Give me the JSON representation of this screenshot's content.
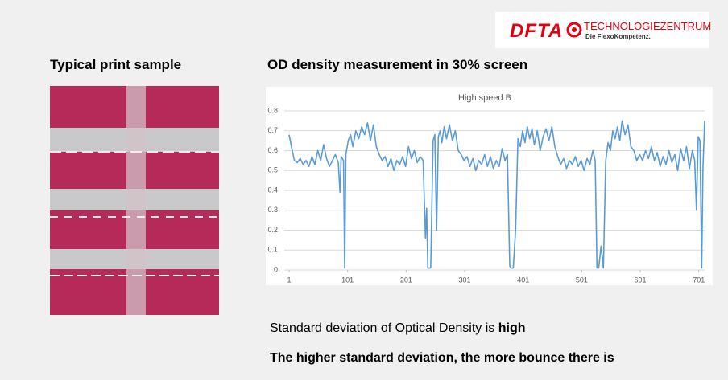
{
  "logo": {
    "brand": "DFTA",
    "name": "TECHNOLOGIEZENTRUM",
    "tagline": "Die FlexoKompetenz."
  },
  "headings": {
    "left": "Typical print sample",
    "right": "OD density measurement in 30% screen"
  },
  "notes": {
    "line1": "Standard deviation of Optical Density is",
    "line1_bold": "high",
    "line2": "The higher standard deviation, the more bounce there is"
  },
  "chart_data": {
    "type": "line",
    "title": "High speed B",
    "x": [
      1,
      5,
      10,
      15,
      20,
      25,
      30,
      35,
      40,
      45,
      50,
      55,
      60,
      65,
      70,
      75,
      80,
      85,
      88,
      90,
      94,
      96,
      98,
      102,
      106,
      110,
      115,
      120,
      125,
      130,
      135,
      140,
      145,
      150,
      155,
      160,
      165,
      170,
      175,
      180,
      185,
      190,
      195,
      200,
      205,
      210,
      215,
      220,
      225,
      230,
      234,
      236,
      238,
      240,
      243,
      247,
      250,
      253,
      256,
      259,
      262,
      266,
      270,
      275,
      280,
      285,
      290,
      295,
      300,
      305,
      310,
      315,
      320,
      325,
      330,
      335,
      340,
      345,
      350,
      355,
      360,
      365,
      370,
      374,
      378,
      380,
      384,
      388,
      392,
      396,
      400,
      404,
      408,
      412,
      416,
      420,
      425,
      430,
      435,
      440,
      445,
      450,
      455,
      460,
      465,
      470,
      475,
      480,
      485,
      490,
      495,
      500,
      505,
      510,
      515,
      520,
      524,
      527,
      530,
      534,
      538,
      542,
      546,
      550,
      554,
      558,
      562,
      566,
      570,
      575,
      580,
      585,
      590,
      595,
      600,
      605,
      610,
      615,
      620,
      625,
      630,
      635,
      640,
      645,
      650,
      655,
      660,
      665,
      670,
      675,
      680,
      685,
      690,
      694,
      697,
      700,
      703,
      706,
      708,
      711
    ],
    "series": [
      {
        "name": "High speed B",
        "color": "#5b9bd5",
        "values": [
          0.68,
          0.62,
          0.55,
          0.54,
          0.56,
          0.53,
          0.55,
          0.52,
          0.57,
          0.53,
          0.6,
          0.55,
          0.63,
          0.56,
          0.52,
          0.55,
          0.58,
          0.54,
          0.39,
          0.57,
          0.55,
          0.01,
          0.58,
          0.65,
          0.68,
          0.62,
          0.7,
          0.66,
          0.72,
          0.68,
          0.74,
          0.65,
          0.73,
          0.62,
          0.58,
          0.55,
          0.57,
          0.52,
          0.56,
          0.5,
          0.55,
          0.53,
          0.57,
          0.52,
          0.62,
          0.56,
          0.6,
          0.54,
          0.57,
          0.55,
          0.16,
          0.31,
          0.01,
          0.01,
          0.01,
          0.65,
          0.68,
          0.2,
          0.67,
          0.7,
          0.64,
          0.72,
          0.66,
          0.73,
          0.65,
          0.7,
          0.6,
          0.58,
          0.55,
          0.57,
          0.52,
          0.56,
          0.5,
          0.55,
          0.53,
          0.58,
          0.52,
          0.57,
          0.51,
          0.55,
          0.52,
          0.61,
          0.55,
          0.58,
          0.02,
          0.01,
          0.01,
          0.2,
          0.66,
          0.62,
          0.7,
          0.64,
          0.72,
          0.66,
          0.71,
          0.63,
          0.7,
          0.6,
          0.67,
          0.71,
          0.65,
          0.72,
          0.62,
          0.57,
          0.53,
          0.56,
          0.51,
          0.55,
          0.53,
          0.57,
          0.52,
          0.55,
          0.5,
          0.56,
          0.53,
          0.6,
          0.55,
          0.01,
          0.01,
          0.12,
          0.01,
          0.55,
          0.64,
          0.6,
          0.7,
          0.66,
          0.72,
          0.65,
          0.75,
          0.68,
          0.73,
          0.62,
          0.6,
          0.55,
          0.58,
          0.55,
          0.6,
          0.56,
          0.62,
          0.55,
          0.59,
          0.52,
          0.57,
          0.53,
          0.6,
          0.54,
          0.58,
          0.5,
          0.61,
          0.55,
          0.62,
          0.51,
          0.6,
          0.55,
          0.3,
          0.67,
          0.65,
          0.01,
          0.5,
          0.75
        ]
      }
    ],
    "xlim": [
      1,
      711
    ],
    "xticks": [
      1,
      101,
      201,
      301,
      401,
      501,
      601,
      701
    ],
    "ylim": [
      0,
      0.8
    ],
    "yticks": [
      0,
      0.1,
      0.2,
      0.3,
      0.4,
      0.5,
      0.6,
      0.7,
      0.8
    ],
    "grid": true
  }
}
